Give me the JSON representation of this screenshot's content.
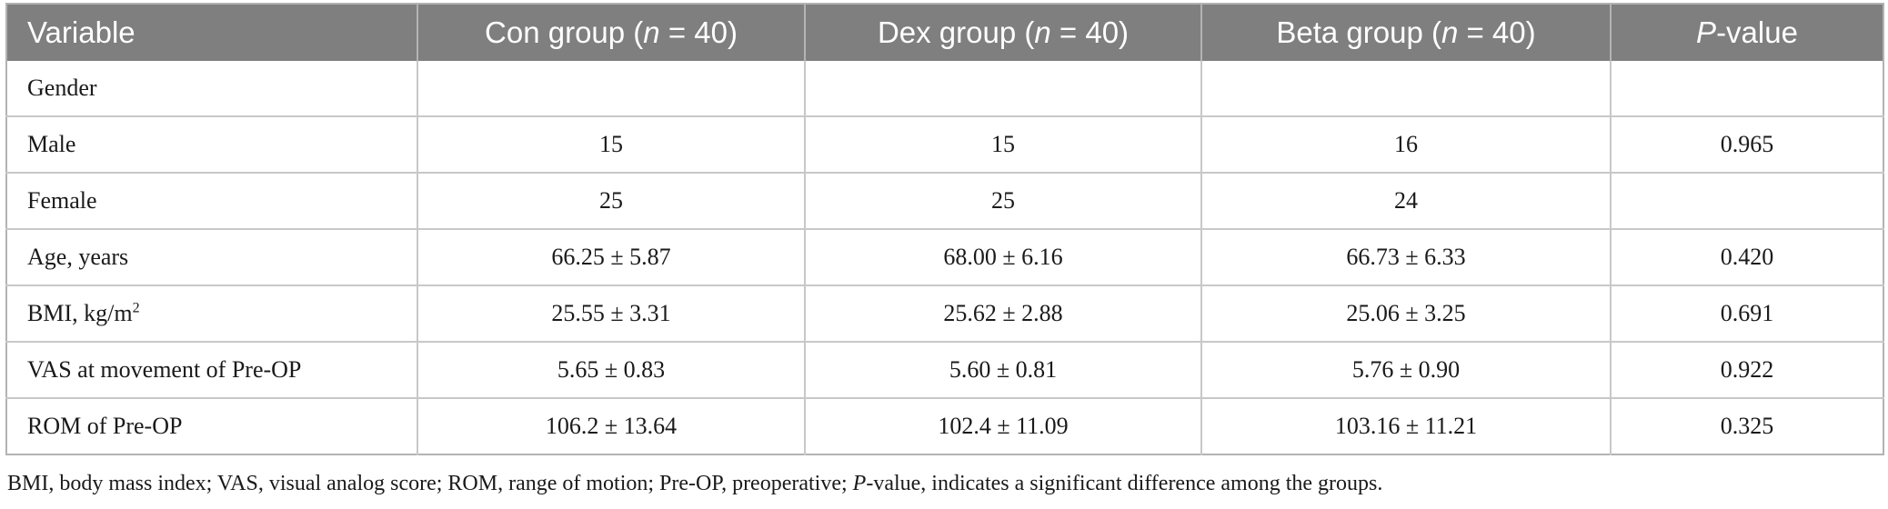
{
  "table": {
    "headers": [
      {
        "text": "Variable"
      },
      {
        "pre": "Con group (",
        "ital": "n",
        "post": " = 40)"
      },
      {
        "pre": "Dex group (",
        "ital": "n",
        "post": " = 40)"
      },
      {
        "pre": "Beta group (",
        "ital": "n",
        "post": " = 40)"
      },
      {
        "ital": "P",
        "post": "-value"
      }
    ],
    "rows": [
      {
        "label": "Gender",
        "con": "",
        "dex": "",
        "beta": "",
        "p": ""
      },
      {
        "label": "Male",
        "con": "15",
        "dex": "15",
        "beta": "16",
        "p": "0.965"
      },
      {
        "label": "Female",
        "con": "25",
        "dex": "25",
        "beta": "24",
        "p": ""
      },
      {
        "label": "Age, years",
        "con": "66.25 ± 5.87",
        "dex": "68.00 ± 6.16",
        "beta": "66.73 ± 6.33",
        "p": "0.420"
      },
      {
        "label": "BMI, kg/m",
        "label_sup": "2",
        "con": "25.55 ± 3.31",
        "dex": "25.62 ± 2.88",
        "beta": "25.06 ± 3.25",
        "p": "0.691"
      },
      {
        "label": "VAS at movement of Pre-OP",
        "con": "5.65 ± 0.83",
        "dex": "5.60 ± 0.81",
        "beta": "5.76 ± 0.90",
        "p": "0.922"
      },
      {
        "label": "ROM of Pre-OP",
        "con": "106.2 ± 13.64",
        "dex": "102.4 ± 11.09",
        "beta": "103.16 ± 11.21",
        "p": "0.325"
      }
    ]
  },
  "footnote": {
    "pre": "BMI, body mass index; VAS, visual analog score; ROM, range of motion; Pre-OP, preoperative; ",
    "ital": "P",
    "post": "-value, indicates a significant difference among the groups."
  }
}
